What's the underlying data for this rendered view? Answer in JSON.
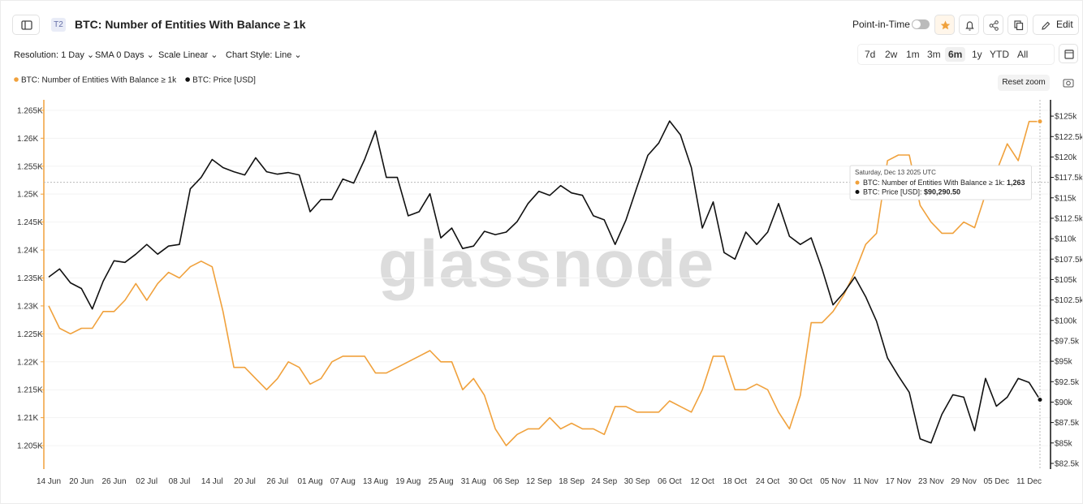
{
  "ui": {
    "badge": "T2",
    "title": "BTC: Number of Entities With Balance ≥ 1k",
    "point_in_time": "Point-in-Time",
    "edit": "Edit",
    "resolution": "Resolution: 1 Day",
    "sma": "SMA 0 Days",
    "scale": "Scale Linear",
    "style": "Chart Style: Line",
    "ranges": [
      "7d",
      "2w",
      "1m",
      "3m",
      "6m",
      "1y",
      "YTD",
      "All"
    ],
    "active_range": "6m",
    "reset_zoom": "Reset zoom",
    "watermark": "glassnode"
  },
  "chart_data": {
    "type": "line",
    "x": [
      "14 Jun",
      null,
      null,
      "20 Jun",
      null,
      null,
      "26 Jun",
      null,
      null,
      "02 Jul",
      null,
      null,
      "08 Jul",
      null,
      null,
      "14 Jul",
      null,
      null,
      "20 Jul",
      null,
      null,
      "26 Jul",
      null,
      null,
      "01 Aug",
      null,
      null,
      "07 Aug",
      null,
      null,
      "13 Aug",
      null,
      null,
      "19 Aug",
      null,
      null,
      "25 Aug",
      null,
      null,
      "31 Aug",
      null,
      null,
      "06 Sep",
      null,
      null,
      "12 Sep",
      null,
      null,
      "18 Sep",
      null,
      null,
      "24 Sep",
      null,
      null,
      "30 Sep",
      null,
      null,
      "06 Oct",
      null,
      null,
      "12 Oct",
      null,
      null,
      "18 Oct",
      null,
      null,
      "24 Oct",
      null,
      null,
      "30 Oct",
      null,
      null,
      "05 Nov",
      null,
      null,
      "11 Nov",
      null,
      null,
      "17 Nov",
      null,
      null,
      "23 Nov",
      null,
      null,
      "29 Nov",
      null,
      null,
      "05 Dec",
      null,
      null,
      "11 Dec",
      null
    ],
    "series": [
      {
        "name": "BTC: Number of Entities With Balance ≥ 1k",
        "color": "#f0a13c",
        "axis": "y",
        "values": [
          1230,
          1226,
          1225,
          1226,
          1226,
          1229,
          1229,
          1231,
          1234,
          1231,
          1234,
          1236,
          1235,
          1237,
          1238,
          1237,
          1229,
          1219,
          1219,
          1217,
          1215,
          1217,
          1220,
          1219,
          1216,
          1217,
          1220,
          1221,
          1221,
          1221,
          1218,
          1218,
          1219,
          1220,
          1221,
          1222,
          1220,
          1220,
          1215,
          1217,
          1214,
          1208,
          1205,
          1207,
          1208,
          1208,
          1210,
          1208,
          1209,
          1208,
          1208,
          1207,
          1212,
          1212,
          1211,
          1211,
          1211,
          1213,
          1212,
          1211,
          1215,
          1221,
          1221,
          1215,
          1215,
          1216,
          1215,
          1211,
          1208,
          1214,
          1227,
          1227,
          1229,
          1232,
          1236,
          1241,
          1243,
          1256,
          1257,
          1257,
          1248,
          1245,
          1243,
          1243,
          1245,
          1244,
          1250,
          1254,
          1259,
          1256,
          1263,
          1263
        ]
      },
      {
        "name": "BTC: Price [USD]",
        "color": "#111111",
        "axis": "y2",
        "values": [
          105300,
          106300,
          104600,
          103900,
          101400,
          104800,
          107300,
          107100,
          108100,
          109300,
          108100,
          109100,
          109300,
          116100,
          117500,
          119700,
          118700,
          118200,
          117800,
          119900,
          118200,
          117900,
          118100,
          117800,
          113300,
          114800,
          114800,
          117300,
          116800,
          119700,
          123200,
          117500,
          117500,
          112800,
          113300,
          115500,
          110100,
          111300,
          108800,
          109100,
          110900,
          110500,
          110800,
          112100,
          114300,
          115800,
          115300,
          116500,
          115600,
          115300,
          112800,
          112300,
          109300,
          112300,
          116300,
          120200,
          121700,
          124400,
          122700,
          118700,
          111300,
          114500,
          108300,
          107500,
          110800,
          109300,
          110800,
          114300,
          110300,
          109300,
          110100,
          106300,
          101900,
          103400,
          105300,
          102900,
          99900,
          95400,
          93200,
          91200,
          85500,
          85000,
          88500,
          90900,
          90600,
          86500,
          92900,
          89500,
          90600,
          92900,
          92400,
          90290.5
        ]
      }
    ],
    "ylim": [
      1200.8,
      1266
    ],
    "yticks": [
      {
        "value": 1205,
        "label": "1.205K"
      },
      {
        "value": 1210,
        "label": "1.21K"
      },
      {
        "value": 1215,
        "label": "1.215K"
      },
      {
        "value": 1220,
        "label": "1.22K"
      },
      {
        "value": 1225,
        "label": "1.225K"
      },
      {
        "value": 1230,
        "label": "1.23K"
      },
      {
        "value": 1235,
        "label": "1.235K"
      },
      {
        "value": 1240,
        "label": "1.24K"
      },
      {
        "value": 1245,
        "label": "1.245K"
      },
      {
        "value": 1250,
        "label": "1.25K"
      },
      {
        "value": 1255,
        "label": "1.255K"
      },
      {
        "value": 1260,
        "label": "1.26K"
      },
      {
        "value": 1265,
        "label": "1.265K"
      }
    ],
    "y2lim": [
      81800,
      126400
    ],
    "y2ticks": [
      {
        "value": 82500,
        "label": "$82.5k"
      },
      {
        "value": 85000,
        "label": "$85k"
      },
      {
        "value": 87500,
        "label": "$87.5k"
      },
      {
        "value": 90000,
        "label": "$90k"
      },
      {
        "value": 92500,
        "label": "$92.5k"
      },
      {
        "value": 95000,
        "label": "$95k"
      },
      {
        "value": 97500,
        "label": "$97.5k"
      },
      {
        "value": 100000,
        "label": "$100k"
      },
      {
        "value": 102500,
        "label": "$102.5k"
      },
      {
        "value": 105000,
        "label": "$105k"
      },
      {
        "value": 107500,
        "label": "$107.5k"
      },
      {
        "value": 110000,
        "label": "$110k"
      },
      {
        "value": 112500,
        "label": "$112.5k"
      },
      {
        "value": 115000,
        "label": "$115k"
      },
      {
        "value": 117500,
        "label": "$117.5k"
      },
      {
        "value": 120000,
        "label": "$120k"
      },
      {
        "value": 122500,
        "label": "$122.5k"
      },
      {
        "value": 125000,
        "label": "$125k"
      }
    ],
    "grid": true,
    "legend": "top-left",
    "tooltip": {
      "title": "Saturday, Dec 13 2025 UTC",
      "items": [
        {
          "label": "BTC: Number of Entities With Balance ≥ 1k: ",
          "value_label": "1,263"
        },
        {
          "label": "BTC: Price [USD]: ",
          "value_label": "$90,290.50"
        }
      ]
    }
  }
}
